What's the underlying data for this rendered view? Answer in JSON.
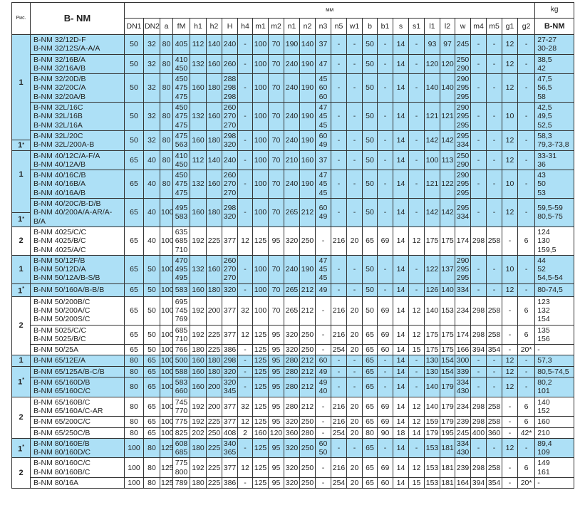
{
  "header": {
    "fig_label": "Рис.",
    "model_label": "B- NM",
    "unit_mm": "мм",
    "unit_kg": "kg",
    "kg_sub": "B-NM",
    "columns": [
      "DN1",
      "DN2",
      "a",
      "fM",
      "h1",
      "h2",
      "H",
      "h4",
      "m1",
      "m2",
      "n1",
      "n2",
      "n3",
      "n5",
      "w1",
      "b",
      "b1",
      "s",
      "s1",
      "l1",
      "l2",
      "w",
      "m4",
      "m5",
      "g1",
      "g2"
    ]
  },
  "colors": {
    "highlight_row": "#ade0f6",
    "border": "#333333"
  },
  "fig_groups": [
    {
      "label": "1",
      "span": 4
    },
    {
      "label": "1*",
      "span": 1,
      "split": true
    },
    {
      "label": "1",
      "span": 2
    },
    {
      "label": "1*",
      "span": 1,
      "split": true
    },
    {
      "label": "2",
      "span": 1
    },
    {
      "label": "1",
      "span": 1
    },
    {
      "label": "1*",
      "span": 1
    },
    {
      "label": "2",
      "span": 3
    },
    {
      "label": "1",
      "span": 1
    },
    {
      "label": "1*",
      "span": 2
    },
    {
      "label": "2",
      "span": 3
    },
    {
      "label": "1*",
      "span": 1
    },
    {
      "label": "2",
      "span": 2
    }
  ],
  "rows": [
    {
      "hl": true,
      "cells": [
        "B-NM 32/12D-F\nB-NM 32/12S/A-A/A",
        "50",
        "32",
        "80",
        "405",
        "112",
        "140",
        "240",
        "-",
        "100",
        "70",
        "190",
        "140",
        "37",
        "-",
        "-",
        "50",
        "-",
        "14",
        "-",
        "93",
        "97",
        "245",
        "-",
        "-",
        "12",
        "-",
        "27-27\n30-28"
      ]
    },
    {
      "hl": true,
      "cells": [
        "B-NM 32/16B/A\nB-NM 32/16A/B",
        "50",
        "32",
        "80",
        "410\n450",
        "132",
        "160",
        "260",
        "-",
        "100",
        "70",
        "240",
        "190",
        "47",
        "-",
        "-",
        "50",
        "-",
        "14",
        "-",
        "120",
        "120",
        "250\n290",
        "-",
        "-",
        "12",
        "-",
        "38,5\n42"
      ]
    },
    {
      "hl": true,
      "cells": [
        "B-NM 32/20D/B\nB-NM 32/20C/A\nB-NM 32/20A/B",
        "50",
        "32",
        "80",
        "450\n475\n475",
        "160",
        "180",
        "288\n298\n298",
        "-",
        "100",
        "70",
        "240",
        "190",
        "45\n60\n60",
        "-",
        "-",
        "50",
        "-",
        "14",
        "-",
        "140",
        "140",
        "290\n295\n295",
        "-",
        "-",
        "12",
        "-",
        "47,5\n56,5\n58"
      ]
    },
    {
      "hl": true,
      "cells": [
        "B-NM 32L/16C\nB-NM 32L/16B\nB-NM 32L/16A",
        "50",
        "32",
        "80",
        "450\n475\n475",
        "132",
        "160",
        "260\n270\n270",
        "-",
        "100",
        "70",
        "240",
        "190",
        "47\n45\n45",
        "-",
        "-",
        "50",
        "-",
        "14",
        "-",
        "121",
        "121",
        "290\n295\n295",
        "-",
        "-",
        "10",
        "-",
        "42,5\n49,5\n52,5"
      ]
    },
    {
      "hl": true,
      "cells": [
        "B-NM 32L/20C\nB-NM 32L/200A-B",
        "50",
        "32",
        "80",
        "475\n563",
        "160",
        "180",
        "298\n320",
        "-",
        "100",
        "70",
        "240",
        "190",
        "60\n49",
        "-",
        "-",
        "50",
        "-",
        "14",
        "-",
        "142",
        "142",
        "295\n334",
        "-",
        "-",
        "12",
        "-",
        "58,3\n79,3-73,8"
      ]
    },
    {
      "hl": true,
      "cells": [
        "B-NM 40/12C/A-F/A\nB-NM 40/12A/B",
        "65",
        "40",
        "80",
        "410\n450",
        "112",
        "140",
        "240",
        "-",
        "100",
        "70",
        "210",
        "160",
        "37",
        "-",
        "-",
        "50",
        "-",
        "14",
        "-",
        "100",
        "113",
        "250\n290",
        "-",
        "-",
        "12",
        "-",
        "33-31\n36"
      ]
    },
    {
      "hl": true,
      "cells": [
        "B-NM 40/16C/B\nB-NM 40/16B/A\nB-NM 40/16A/B",
        "65",
        "40",
        "80",
        "450\n475\n475",
        "132",
        "160",
        "260\n270\n270",
        "-",
        "100",
        "70",
        "240",
        "190",
        "47\n45\n45",
        "-",
        "-",
        "50",
        "-",
        "14",
        "-",
        "121",
        "122",
        "290\n295\n295",
        "-",
        "-",
        "10",
        "-",
        "43\n50\n53"
      ]
    },
    {
      "hl": true,
      "cells": [
        "B-NM 40/20C/B-D/B\nB-NM 40/200A/A-AR/A-B/A",
        "65",
        "40",
        "100",
        "495\n583",
        "160",
        "180",
        "298\n320",
        "-",
        "100",
        "70",
        "265",
        "212",
        "60\n49",
        "-",
        "-",
        "50",
        "-",
        "14",
        "-",
        "142",
        "142",
        "295\n334",
        "-",
        "-",
        "12",
        "-",
        "59,5-59\n80,5-75"
      ]
    },
    {
      "hl": false,
      "cells": [
        "B-NM 4025/C/C\nB-NM 4025/B/C\nB-NM 4025/A/C",
        "65",
        "40",
        "100",
        "635\n685\n710",
        "192",
        "225",
        "377",
        "12",
        "125",
        "95",
        "320",
        "250",
        "-",
        "216",
        "20",
        "65",
        "69",
        "14",
        "12",
        "175",
        "175",
        "174",
        "298",
        "258",
        "-",
        "6",
        "124\n130\n159,5"
      ]
    },
    {
      "hl": true,
      "cells": [
        "B-NM 50/12F/B\nB-NM 50/12D/A\nB-NM 50/12A/B-S/B",
        "65",
        "50",
        "100",
        "470\n495\n495",
        "132",
        "160",
        "260\n270\n270",
        "-",
        "100",
        "70",
        "240",
        "190",
        "47\n45\n45",
        "-",
        "-",
        "50",
        "-",
        "14",
        "-",
        "122",
        "137",
        "290\n295\n295",
        "-",
        "-",
        "10",
        "-",
        "44\n52\n54,5-54"
      ]
    },
    {
      "hl": true,
      "cells": [
        "B-NM 50/160A/B-B/B",
        "65",
        "50",
        "100",
        "583",
        "160",
        "180",
        "320",
        "-",
        "100",
        "70",
        "265",
        "212",
        "49",
        "-",
        "-",
        "50",
        "-",
        "14",
        "-",
        "126",
        "140",
        "334",
        "-",
        "-",
        "12",
        "-",
        "80-74,5"
      ]
    },
    {
      "hl": false,
      "cells": [
        "B-NM 50/200B/C\nB-NM 50/200A/C\nB-NM 50/200S/C",
        "65",
        "50",
        "100",
        "695\n745\n769",
        "192",
        "200",
        "377",
        "32",
        "100",
        "70",
        "265",
        "212",
        "-",
        "216",
        "20",
        "50",
        "69",
        "14",
        "12",
        "140",
        "153",
        "234",
        "298",
        "258",
        "-",
        "6",
        "123\n132\n154"
      ]
    },
    {
      "hl": false,
      "cells": [
        "B-NM 5025/C/C\nB-NM 5025/B/C",
        "65",
        "50",
        "100",
        "685\n710",
        "192",
        "225",
        "377",
        "12",
        "125",
        "95",
        "320",
        "250",
        "-",
        "216",
        "20",
        "65",
        "69",
        "14",
        "12",
        "175",
        "175",
        "174",
        "298",
        "258",
        "-",
        "6",
        "135\n156"
      ]
    },
    {
      "hl": false,
      "cells": [
        "B-NM 50/25A",
        "65",
        "50",
        "100",
        "766",
        "180",
        "225",
        "386",
        "-",
        "125",
        "95",
        "320",
        "250",
        "-",
        "254",
        "20",
        "65",
        "60",
        "14",
        "15",
        "175",
        "175",
        "166",
        "394",
        "354",
        "-",
        "20*",
        "-"
      ]
    },
    {
      "hl": true,
      "cells": [
        "B-NM 65/12E/A",
        "80",
        "65",
        "100",
        "500",
        "160",
        "180",
        "298",
        "-",
        "125",
        "95",
        "280",
        "212",
        "60",
        "-",
        "-",
        "65",
        "-",
        "14",
        "-",
        "130",
        "154",
        "300",
        "-",
        "-",
        "12",
        "-",
        "57,3"
      ]
    },
    {
      "hl": true,
      "cells": [
        "B-NM 65/125A/B-C/B",
        "80",
        "65",
        "100",
        "588",
        "160",
        "180",
        "320",
        "-",
        "125",
        "95",
        "280",
        "212",
        "49",
        "-",
        "-",
        "65",
        "-",
        "14",
        "-",
        "130",
        "154",
        "339",
        "-",
        "-",
        "12",
        "-",
        "80,5-74,5"
      ]
    },
    {
      "hl": true,
      "cells": [
        "B-NM 65/160D/B\nB-NM 65/160C/C",
        "80",
        "65",
        "100",
        "583\n660",
        "160",
        "200",
        "320\n345",
        "-",
        "125",
        "95",
        "280",
        "212",
        "49\n40",
        "-",
        "-",
        "65",
        "-",
        "14",
        "-",
        "140",
        "179",
        "334\n430",
        "-",
        "-",
        "12",
        "-",
        "80,2\n101"
      ]
    },
    {
      "hl": false,
      "cells": [
        "B-NM 65/160B/C\nB-NM 65/160A/C-AR",
        "80",
        "65",
        "100",
        "745\n770",
        "192",
        "200",
        "377",
        "32",
        "125",
        "95",
        "280",
        "212",
        "-",
        "216",
        "20",
        "65",
        "69",
        "14",
        "12",
        "140",
        "179",
        "234",
        "298",
        "258",
        "-",
        "6",
        "140\n152"
      ]
    },
    {
      "hl": false,
      "cells": [
        "B-NM 65/200C/C",
        "80",
        "65",
        "100",
        "775",
        "192",
        "225",
        "377",
        "12",
        "125",
        "95",
        "320",
        "250",
        "-",
        "216",
        "20",
        "65",
        "69",
        "14",
        "12",
        "159",
        "179",
        "239",
        "298",
        "258",
        "-",
        "6",
        "160"
      ]
    },
    {
      "hl": false,
      "cells": [
        "B-NM 65/250C/B",
        "80",
        "65",
        "100",
        "825",
        "202",
        "250",
        "408",
        "2",
        "160",
        "120",
        "360",
        "280",
        "-",
        "254",
        "20",
        "80",
        "90",
        "18",
        "14",
        "179",
        "195",
        "245",
        "400",
        "360",
        "-",
        "42*",
        "210"
      ]
    },
    {
      "hl": true,
      "cells": [
        "B-NM 80/160E/B\nB-NM 80/160D/C",
        "100",
        "80",
        "125",
        "608\n685",
        "180",
        "225",
        "340\n365",
        "-",
        "125",
        "95",
        "320",
        "250",
        "60\n50",
        "-",
        "-",
        "65",
        "-",
        "14",
        "-",
        "153",
        "181",
        "334\n430",
        "-",
        "-",
        "12",
        "-",
        "89,4\n109"
      ]
    },
    {
      "hl": false,
      "cells": [
        "B-NM 80/160C/C\nB-NM 80/160B/C",
        "100",
        "80",
        "125",
        "775\n800",
        "192",
        "225",
        "377",
        "12",
        "125",
        "95",
        "320",
        "250",
        "-",
        "216",
        "20",
        "65",
        "69",
        "14",
        "12",
        "153",
        "181",
        "239",
        "298",
        "258",
        "-",
        "6",
        "149\n161"
      ]
    },
    {
      "hl": false,
      "cells": [
        "B-NM 80/16A",
        "100",
        "80",
        "125",
        "789",
        "180",
        "225",
        "386",
        "-",
        "125",
        "95",
        "320",
        "250",
        "-",
        "254",
        "20",
        "65",
        "60",
        "14",
        "15",
        "153",
        "181",
        "164",
        "394",
        "354",
        "-",
        "20*",
        "-"
      ]
    }
  ]
}
